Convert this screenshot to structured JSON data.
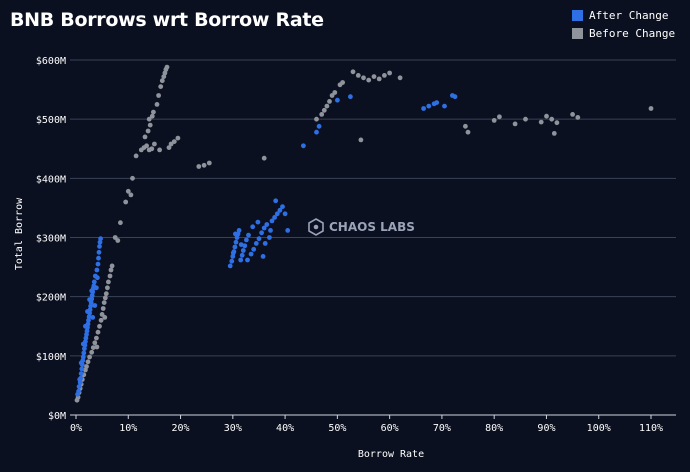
{
  "chart_data": {
    "type": "scatter",
    "title": "BNB Borrows wrt Borrow Rate",
    "xlabel": "Borrow Rate",
    "ylabel": "Total Borrow",
    "xlim": [
      -0.5,
      110
    ],
    "ylim": [
      0,
      600
    ],
    "x_ticks": [
      "0%",
      "10%",
      "20%",
      "30%",
      "40%",
      "50%",
      "60%",
      "70%",
      "80%",
      "90%",
      "100%",
      "110%"
    ],
    "x_tick_values": [
      0,
      10,
      20,
      30,
      40,
      50,
      60,
      70,
      80,
      90,
      100,
      110
    ],
    "y_ticks": [
      "$0M",
      "$100M",
      "$200M",
      "$300M",
      "$400M",
      "$500M",
      "$600M"
    ],
    "y_tick_values": [
      0,
      100,
      200,
      300,
      400,
      500,
      600
    ],
    "grid": true,
    "legend_position": "top-right",
    "watermark": "CHAOS LABS",
    "series": [
      {
        "name": "After Change",
        "color": "#2f6fe4",
        "points": [
          [
            0.3,
            35
          ],
          [
            0.5,
            40
          ],
          [
            0.6,
            48
          ],
          [
            0.8,
            55
          ],
          [
            0.9,
            62
          ],
          [
            1.0,
            70
          ],
          [
            1.1,
            78
          ],
          [
            1.2,
            85
          ],
          [
            1.3,
            92
          ],
          [
            1.4,
            98
          ],
          [
            1.5,
            105
          ],
          [
            1.6,
            112
          ],
          [
            1.7,
            118
          ],
          [
            1.8,
            124
          ],
          [
            1.9,
            130
          ],
          [
            2.0,
            136
          ],
          [
            2.1,
            142
          ],
          [
            2.2,
            148
          ],
          [
            2.3,
            154
          ],
          [
            2.4,
            160
          ],
          [
            2.5,
            166
          ],
          [
            2.6,
            172
          ],
          [
            2.7,
            178
          ],
          [
            2.8,
            184
          ],
          [
            2.9,
            190
          ],
          [
            3.0,
            196
          ],
          [
            3.1,
            202
          ],
          [
            3.2,
            208
          ],
          [
            3.3,
            214
          ],
          [
            3.4,
            218
          ],
          [
            0.7,
            60
          ],
          [
            1.0,
            88
          ],
          [
            1.4,
            120
          ],
          [
            1.8,
            150
          ],
          [
            2.2,
            175
          ],
          [
            2.6,
            195
          ],
          [
            3.0,
            210
          ],
          [
            3.5,
            225
          ],
          [
            3.7,
            235
          ],
          [
            4.0,
            245
          ],
          [
            4.2,
            255
          ],
          [
            4.3,
            265
          ],
          [
            4.4,
            275
          ],
          [
            4.5,
            285
          ],
          [
            4.6,
            292
          ],
          [
            4.7,
            298
          ],
          [
            4.1,
            232
          ],
          [
            3.9,
            215
          ],
          [
            3.6,
            185
          ],
          [
            3.2,
            165
          ],
          [
            29.5,
            252
          ],
          [
            29.8,
            260
          ],
          [
            30.0,
            268
          ],
          [
            30.2,
            276
          ],
          [
            30.4,
            284
          ],
          [
            30.6,
            292
          ],
          [
            30.8,
            300
          ],
          [
            31.0,
            306
          ],
          [
            31.5,
            262
          ],
          [
            31.8,
            270
          ],
          [
            32.0,
            278
          ],
          [
            32.3,
            286
          ],
          [
            32.6,
            296
          ],
          [
            33.0,
            304
          ],
          [
            33.5,
            272
          ],
          [
            34.0,
            280
          ],
          [
            34.5,
            290
          ],
          [
            35.0,
            298
          ],
          [
            35.5,
            308
          ],
          [
            36.0,
            316
          ],
          [
            36.5,
            322
          ],
          [
            37.0,
            300
          ],
          [
            37.5,
            328
          ],
          [
            38.0,
            334
          ],
          [
            38.5,
            340
          ],
          [
            39.0,
            346
          ],
          [
            39.5,
            352
          ],
          [
            38.2,
            362
          ],
          [
            40.0,
            340
          ],
          [
            40.5,
            312
          ],
          [
            30.5,
            306
          ],
          [
            31.2,
            312
          ],
          [
            32.8,
            262
          ],
          [
            35.8,
            268
          ],
          [
            36.2,
            290
          ],
          [
            37.2,
            312
          ],
          [
            30.1,
            274
          ],
          [
            31.6,
            288
          ],
          [
            33.8,
            318
          ],
          [
            34.8,
            326
          ],
          [
            43.5,
            455
          ],
          [
            46.0,
            478
          ],
          [
            46.5,
            488
          ],
          [
            50.0,
            532
          ],
          [
            52.5,
            538
          ],
          [
            66.5,
            518
          ],
          [
            67.5,
            522
          ],
          [
            68.5,
            526
          ],
          [
            69.0,
            528
          ],
          [
            70.5,
            522
          ],
          [
            72.0,
            540
          ],
          [
            72.5,
            538
          ]
        ]
      },
      {
        "name": "Before Change",
        "color": "#8f939c",
        "points": [
          [
            0.2,
            25
          ],
          [
            0.4,
            30
          ],
          [
            0.6,
            38
          ],
          [
            0.8,
            45
          ],
          [
            1.0,
            52
          ],
          [
            1.2,
            60
          ],
          [
            1.5,
            68
          ],
          [
            1.8,
            76
          ],
          [
            2.0,
            82
          ],
          [
            2.3,
            90
          ],
          [
            2.6,
            98
          ],
          [
            3.0,
            106
          ],
          [
            3.3,
            114
          ],
          [
            3.6,
            122
          ],
          [
            3.9,
            130
          ],
          [
            4.2,
            140
          ],
          [
            4.5,
            150
          ],
          [
            4.8,
            160
          ],
          [
            5.0,
            170
          ],
          [
            5.2,
            180
          ],
          [
            5.4,
            190
          ],
          [
            5.6,
            198
          ],
          [
            5.8,
            205
          ],
          [
            6.0,
            215
          ],
          [
            6.2,
            225
          ],
          [
            6.5,
            235
          ],
          [
            6.7,
            245
          ],
          [
            6.9,
            252
          ],
          [
            4.0,
            115
          ],
          [
            5.5,
            165
          ],
          [
            7.5,
            300
          ],
          [
            8.0,
            295
          ],
          [
            8.5,
            325
          ],
          [
            9.5,
            360
          ],
          [
            10.0,
            378
          ],
          [
            10.5,
            372
          ],
          [
            10.8,
            400
          ],
          [
            11.5,
            438
          ],
          [
            12.5,
            448
          ],
          [
            13.0,
            452
          ],
          [
            13.5,
            455
          ],
          [
            14.0,
            448
          ],
          [
            14.5,
            450
          ],
          [
            15.0,
            458
          ],
          [
            13.2,
            470
          ],
          [
            13.8,
            480
          ],
          [
            14.2,
            490
          ],
          [
            14.0,
            500
          ],
          [
            14.6,
            505
          ],
          [
            14.8,
            512
          ],
          [
            15.5,
            525
          ],
          [
            15.8,
            540
          ],
          [
            16.2,
            555
          ],
          [
            16.5,
            565
          ],
          [
            16.8,
            572
          ],
          [
            17.0,
            578
          ],
          [
            17.2,
            584
          ],
          [
            17.4,
            588
          ],
          [
            16.0,
            448
          ],
          [
            17.8,
            452
          ],
          [
            18.2,
            458
          ],
          [
            18.8,
            462
          ],
          [
            19.5,
            468
          ],
          [
            23.5,
            420
          ],
          [
            24.5,
            422
          ],
          [
            25.5,
            426
          ],
          [
            36.0,
            434
          ],
          [
            46.0,
            500
          ],
          [
            47.0,
            508
          ],
          [
            47.5,
            515
          ],
          [
            48.0,
            522
          ],
          [
            48.5,
            530
          ],
          [
            49.0,
            540
          ],
          [
            49.5,
            545
          ],
          [
            50.5,
            558
          ],
          [
            51.0,
            562
          ],
          [
            53.0,
            580
          ],
          [
            54.0,
            574
          ],
          [
            55.0,
            570
          ],
          [
            56.0,
            566
          ],
          [
            57.0,
            572
          ],
          [
            58.0,
            568
          ],
          [
            59.0,
            574
          ],
          [
            60.0,
            578
          ],
          [
            62.0,
            570
          ],
          [
            54.5,
            465
          ],
          [
            74.5,
            488
          ],
          [
            75.0,
            478
          ],
          [
            80.0,
            498
          ],
          [
            81.0,
            504
          ],
          [
            84.0,
            492
          ],
          [
            86.0,
            500
          ],
          [
            89.0,
            495
          ],
          [
            90.0,
            505
          ],
          [
            91.0,
            500
          ],
          [
            92.0,
            494
          ],
          [
            95.0,
            508
          ],
          [
            96.0,
            503
          ],
          [
            110.0,
            518
          ],
          [
            91.5,
            476
          ]
        ]
      }
    ]
  }
}
